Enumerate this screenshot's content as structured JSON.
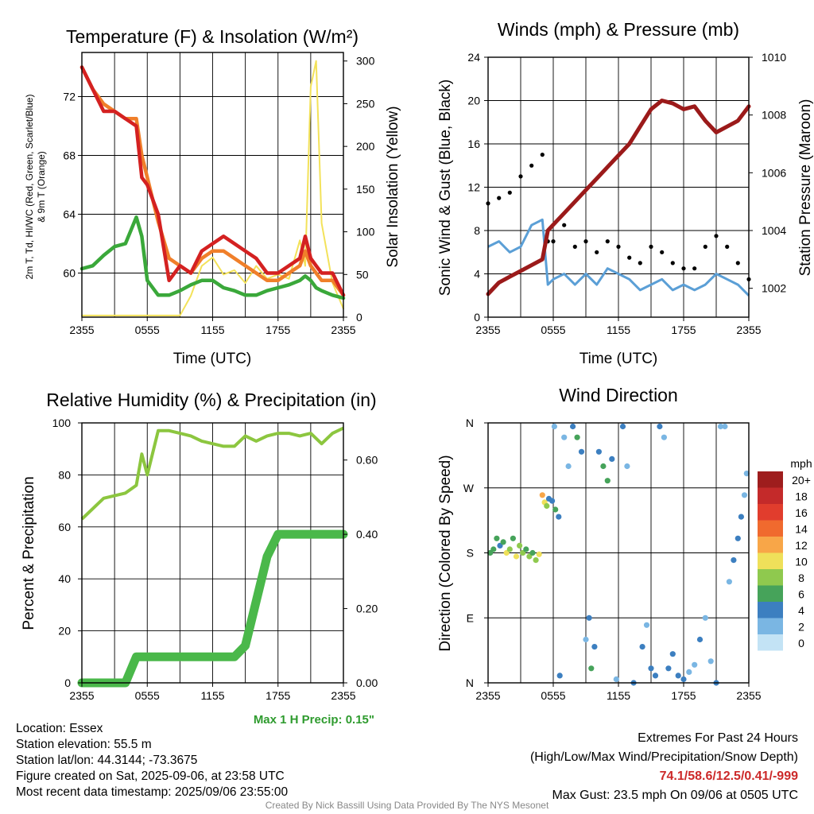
{
  "panels": {
    "temp": {
      "title": "Temperature (F) & Insolation (W/m²)",
      "ylabel_left_1": "2m T, Td, HI/WC (Red, Green, Scarlet/Blue)",
      "ylabel_left_2": "& 9m T (Orange)",
      "ylabel_right": "Solar Insolation (Yellow)",
      "xlabel": "Time (UTC)"
    },
    "wind": {
      "title": "Winds (mph) & Pressure (mb)",
      "ylabel_left": "Sonic Wind & Gust (Blue, Black)",
      "ylabel_right": "Station Pressure (Maroon)",
      "xlabel": "Time (UTC)"
    },
    "rh": {
      "title": "Relative Humidity (%) & Precipitation (in)",
      "ylabel_left": "Percent & Precipitation",
      "max_precip": "Max 1 H Precip: 0.15\""
    },
    "dir": {
      "title": "Wind Direction",
      "ylabel_left": "Direction (Colored By Speed)",
      "legend_title": "mph"
    }
  },
  "info": {
    "location": "Location: Essex",
    "elevation": "Station elevation: 55.5 m",
    "latlon": "Station lat/lon: 44.3144; -73.3675",
    "created": "Figure created on Sat, 2025-09-06, at 23:58 UTC",
    "recent": "Most recent data timestamp: 2025/09/06 23:55:00"
  },
  "extremes": {
    "line1": "Extremes For Past 24 Hours",
    "line2": "(High/Low/Max Wind/Precipitation/Snow Depth)",
    "values": "74.1/58.6/12.5/0.41/-999",
    "gust": "Max Gust: 23.5 mph On 09/06 at 0505 UTC"
  },
  "credit": "Created By Nick Bassill Using Data Provided By The NYS Mesonet",
  "colors": {
    "temp": "#d42121",
    "dewpoint": "#3aa83a",
    "temp9m": "#f07f2a",
    "solar": "#f3e25a",
    "wind": "#5b9fd6",
    "gust": "#000000",
    "pressure": "#9b1a1a",
    "rh": "#8cc63f",
    "precip": "#4ab84a"
  },
  "chart_data": [
    {
      "type": "line",
      "title": "Temperature (F) & Insolation (W/m²)",
      "xlabel": "Time (UTC)",
      "x_ticks": [
        "2355",
        "0555",
        "1155",
        "1755",
        "2355"
      ],
      "ylim": [
        57,
        75
      ],
      "y_ticks": [
        60,
        64,
        68,
        72
      ],
      "y2lim": [
        0,
        310
      ],
      "y2_ticks": [
        0,
        50,
        100,
        150,
        200,
        250,
        300
      ],
      "x_hours": [
        0,
        1,
        2,
        3,
        4,
        5,
        5.5,
        6,
        7,
        8,
        9,
        10,
        11,
        12,
        13,
        14,
        15,
        16,
        17,
        18,
        19,
        20,
        20.5,
        21,
        21.5,
        22,
        23,
        24
      ],
      "series": [
        {
          "name": "2m T",
          "axis": "left",
          "values": [
            74.0,
            72.5,
            71.0,
            71.0,
            70.5,
            70.0,
            66.5,
            66.0,
            64.0,
            59.5,
            60.5,
            60.0,
            61.5,
            62.0,
            62.5,
            62.0,
            61.5,
            61.0,
            60.0,
            60.0,
            60.5,
            61.0,
            62.5,
            61.0,
            60.5,
            60.0,
            60.0,
            58.5
          ]
        },
        {
          "name": "9m T",
          "axis": "left",
          "values": [
            74.0,
            72.5,
            71.5,
            71.0,
            70.5,
            70.5,
            68.0,
            66.5,
            63.5,
            61.0,
            60.5,
            60.0,
            61.0,
            61.5,
            61.5,
            61.0,
            60.5,
            60.0,
            59.5,
            59.5,
            60.0,
            60.5,
            61.5,
            60.5,
            60.0,
            59.5,
            59.5,
            58.5
          ]
        },
        {
          "name": "2m Td",
          "axis": "left",
          "values": [
            60.3,
            60.5,
            61.2,
            61.8,
            62.0,
            63.8,
            62.5,
            59.5,
            58.5,
            58.5,
            58.8,
            59.2,
            59.5,
            59.5,
            59.0,
            58.8,
            58.5,
            58.5,
            58.8,
            59.0,
            59.2,
            59.5,
            59.8,
            59.5,
            59.0,
            58.8,
            58.5,
            58.3
          ]
        },
        {
          "name": "Solar",
          "axis": "right",
          "values": [
            2,
            2,
            2,
            2,
            2,
            2,
            2,
            2,
            2,
            2,
            2,
            25,
            60,
            70,
            50,
            55,
            40,
            60,
            45,
            50,
            45,
            90,
            60,
            270,
            300,
            110,
            40,
            10
          ]
        }
      ]
    },
    {
      "type": "line",
      "title": "Winds (mph) & Pressure (mb)",
      "xlabel": "Time (UTC)",
      "x_ticks": [
        "2355",
        "0555",
        "1155",
        "1755",
        "2355"
      ],
      "ylim": [
        0,
        24
      ],
      "y_ticks": [
        0,
        4,
        8,
        12,
        16,
        20,
        24
      ],
      "y2lim": [
        1001,
        1010
      ],
      "y2_ticks": [
        1002,
        1004,
        1006,
        1008,
        1010
      ],
      "x_hours": [
        0,
        1,
        2,
        3,
        4,
        5,
        5.5,
        6,
        7,
        8,
        9,
        10,
        11,
        12,
        13,
        14,
        15,
        16,
        17,
        18,
        19,
        20,
        21,
        22,
        23,
        24
      ],
      "series": [
        {
          "name": "Sonic Wind",
          "axis": "left",
          "values": [
            6.5,
            7.0,
            6.0,
            6.5,
            8.5,
            9.0,
            3.0,
            3.5,
            4.0,
            3.0,
            4.0,
            3.0,
            4.5,
            4.0,
            3.5,
            2.5,
            3.0,
            3.5,
            2.5,
            3.0,
            2.5,
            3.0,
            4.0,
            3.5,
            3.0,
            2.0
          ]
        },
        {
          "name": "Gust",
          "axis": "left",
          "values": [
            10.5,
            11.0,
            11.5,
            13.0,
            14.0,
            15.0,
            7.0,
            7.0,
            8.5,
            6.5,
            7.0,
            6.0,
            7.0,
            6.5,
            5.5,
            5.0,
            6.5,
            6.0,
            5.0,
            4.5,
            4.5,
            6.5,
            7.5,
            6.5,
            5.0,
            3.5
          ]
        },
        {
          "name": "Pressure",
          "axis": "right",
          "values": [
            1001.8,
            1002.2,
            1002.4,
            1002.6,
            1002.8,
            1003.0,
            1004.0,
            1004.2,
            1004.6,
            1005.0,
            1005.4,
            1005.8,
            1006.2,
            1006.6,
            1007.0,
            1007.6,
            1008.2,
            1008.5,
            1008.4,
            1008.2,
            1008.3,
            1007.8,
            1007.4,
            1007.6,
            1007.8,
            1008.3
          ]
        }
      ]
    },
    {
      "type": "line",
      "title": "Relative Humidity (%) & Precipitation (in)",
      "x_ticks": [
        "2355",
        "0555",
        "1155",
        "1755",
        "2355"
      ],
      "ylim": [
        0,
        100
      ],
      "y_ticks": [
        0,
        20,
        40,
        60,
        80,
        100
      ],
      "y2lim": [
        0,
        0.7
      ],
      "y2_ticks": [
        "0.00",
        "0.20",
        "0.40",
        "0.60"
      ],
      "x_hours": [
        0,
        1,
        2,
        3,
        4,
        5,
        5.5,
        6,
        7,
        8,
        9,
        10,
        11,
        12,
        13,
        14,
        15,
        16,
        17,
        18,
        19,
        20,
        21,
        22,
        23,
        24
      ],
      "series": [
        {
          "name": "RH",
          "axis": "left",
          "values": [
            63,
            67,
            71,
            72,
            73,
            76,
            88,
            80,
            97,
            97,
            96,
            95,
            93,
            92,
            91,
            91,
            95,
            93,
            95,
            96,
            96,
            95,
            96,
            92,
            96,
            98
          ]
        },
        {
          "name": "Precip",
          "axis": "right",
          "values": [
            0,
            0,
            0,
            0,
            0,
            0.07,
            0.07,
            0.07,
            0.07,
            0.07,
            0.07,
            0.07,
            0.07,
            0.07,
            0.07,
            0.07,
            0.1,
            0.22,
            0.34,
            0.4,
            0.4,
            0.4,
            0.4,
            0.4,
            0.4,
            0.4
          ]
        }
      ]
    },
    {
      "type": "scatter",
      "title": "Wind Direction",
      "ylabel": "Direction (Colored By Speed)",
      "x_ticks": [
        "2355",
        "0555",
        "1155",
        "1755",
        "2355"
      ],
      "y_ticks": [
        "N",
        "E",
        "S",
        "W",
        "N"
      ],
      "legend": {
        "title": "mph",
        "labels": [
          "20+",
          "18",
          "16",
          "14",
          "12",
          "10",
          "8",
          "6",
          "4",
          "2",
          "0"
        ],
        "colors": [
          "#9e1d1d",
          "#c42a2a",
          "#e13d2d",
          "#f06a2e",
          "#f8a648",
          "#efe05a",
          "#8fc94e",
          "#46a35a",
          "#3c7fc0",
          "#7ab6e3",
          "#c3e3f5"
        ]
      },
      "points": [
        [
          0.2,
          180,
          5
        ],
        [
          0.5,
          185,
          6
        ],
        [
          0.8,
          200,
          6
        ],
        [
          1.1,
          190,
          4
        ],
        [
          1.4,
          195,
          5
        ],
        [
          1.7,
          180,
          10
        ],
        [
          2.0,
          185,
          8
        ],
        [
          2.3,
          200,
          6
        ],
        [
          2.6,
          175,
          10
        ],
        [
          2.9,
          190,
          7
        ],
        [
          3.2,
          180,
          8
        ],
        [
          3.5,
          185,
          6
        ],
        [
          3.8,
          175,
          7
        ],
        [
          4.1,
          180,
          6
        ],
        [
          4.4,
          170,
          8
        ],
        [
          4.7,
          178,
          9
        ],
        [
          5.0,
          260,
          12
        ],
        [
          5.2,
          250,
          10
        ],
        [
          5.4,
          245,
          8
        ],
        [
          5.6,
          255,
          4
        ],
        [
          5.9,
          252,
          3
        ],
        [
          6.2,
          240,
          6
        ],
        [
          6.5,
          230,
          3
        ],
        [
          6.1,
          355,
          2
        ],
        [
          6.6,
          10,
          4
        ],
        [
          7.0,
          340,
          2
        ],
        [
          7.4,
          300,
          2
        ],
        [
          7.8,
          355,
          4
        ],
        [
          8.2,
          340,
          6
        ],
        [
          8.6,
          320,
          4
        ],
        [
          9.0,
          60,
          2
        ],
        [
          9.3,
          90,
          3
        ],
        [
          9.5,
          20,
          5
        ],
        [
          9.8,
          50,
          3
        ],
        [
          10.2,
          320,
          4
        ],
        [
          10.6,
          300,
          5
        ],
        [
          11.0,
          280,
          6
        ],
        [
          11.4,
          310,
          3
        ],
        [
          11.8,
          5,
          2
        ],
        [
          12.4,
          355,
          3
        ],
        [
          12.8,
          300,
          2
        ],
        [
          13.4,
          0,
          3
        ],
        [
          14.2,
          50,
          4
        ],
        [
          14.6,
          80,
          2
        ],
        [
          15.0,
          20,
          4
        ],
        [
          15.4,
          10,
          3
        ],
        [
          15.8,
          355,
          3
        ],
        [
          16.2,
          340,
          2
        ],
        [
          16.6,
          20,
          4
        ],
        [
          17.0,
          40,
          3
        ],
        [
          17.5,
          10,
          4
        ],
        [
          18.0,
          5,
          3
        ],
        [
          18.5,
          15,
          2
        ],
        [
          19.0,
          25,
          2
        ],
        [
          19.5,
          60,
          3
        ],
        [
          20.0,
          90,
          2
        ],
        [
          20.5,
          30,
          1
        ],
        [
          21.0,
          0,
          3
        ],
        [
          21.4,
          355,
          2
        ],
        [
          21.8,
          355,
          2
        ],
        [
          22.2,
          140,
          2
        ],
        [
          22.6,
          170,
          3
        ],
        [
          23.0,
          200,
          4
        ],
        [
          23.3,
          230,
          3
        ],
        [
          23.6,
          260,
          2
        ],
        [
          23.8,
          290,
          2
        ]
      ]
    }
  ]
}
